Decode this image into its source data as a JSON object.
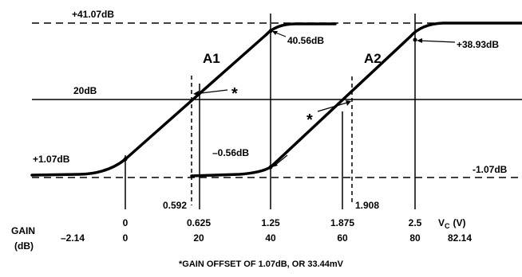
{
  "chart_data": {
    "type": "line",
    "x_quantity": "V_C (V)",
    "series": [
      {
        "name": "A1",
        "x": [
          -0.25,
          0.0,
          0.3125,
          0.592,
          0.9375,
          1.25,
          1.5,
          1.875
        ],
        "y": [
          -0.6,
          1.07,
          10.0,
          20.0,
          30.0,
          40.56,
          41.0,
          41.07
        ]
      },
      {
        "name": "A2",
        "x": [
          1.15,
          1.25,
          1.5625,
          1.908,
          2.1875,
          2.5,
          2.75,
          3.0
        ],
        "y": [
          -0.9,
          -0.56,
          10.0,
          20.0,
          30.0,
          38.93,
          40.9,
          41.07
        ]
      }
    ],
    "reference_lines": [
      {
        "label": "+41.07dB",
        "y": 41.07,
        "style": "dashed"
      },
      {
        "label": "20dB",
        "y": 20.0,
        "style": "solid"
      },
      {
        "label": "-1.07dB",
        "y": -1.07,
        "style": "dashed"
      }
    ],
    "point_labels": [
      {
        "text": "+1.07dB",
        "x": 0.0,
        "y": 1.07
      },
      {
        "text": "40.56dB",
        "x": 1.25,
        "y": 40.56
      },
      {
        "text": "–0.56dB",
        "x": 1.25,
        "y": -0.56
      },
      {
        "text": "+38.93dB",
        "x": 2.5,
        "y": 38.93
      }
    ],
    "offset_markers": [
      {
        "label": "0.592",
        "x": 0.592
      },
      {
        "label": "1.908",
        "x": 1.908
      }
    ],
    "vc_ticks": [
      {
        "x": 0.0,
        "label": "0"
      },
      {
        "x": 0.625,
        "label": "0.625"
      },
      {
        "x": 1.25,
        "label": "1.25"
      },
      {
        "x": 1.875,
        "label": "1.875"
      },
      {
        "x": 2.5,
        "label": "2.5"
      }
    ],
    "gain_values": [
      "–2.14",
      "0",
      "20",
      "40",
      "60",
      "80",
      "82.14"
    ],
    "series_labels": [
      "A1",
      "A2"
    ],
    "axis_label_gain": "GAIN",
    "axis_label_gain_unit": "(dB)",
    "axis_label_vc": "V",
    "axis_label_vc_sub": "C",
    "axis_label_vc_unit": "(V)",
    "footnote": "*GAIN OFFSET OF 1.07dB, OR 33.44mV",
    "asterisk": "*"
  }
}
